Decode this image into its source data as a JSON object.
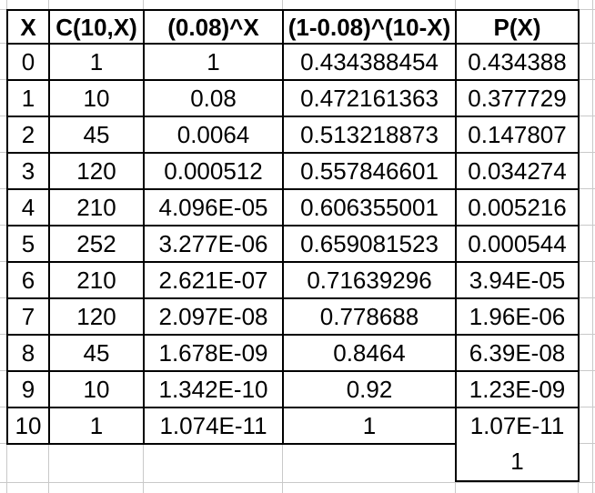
{
  "worksheet": {
    "table": {
      "columns": [
        "X",
        "C(10,X)",
        "(0.08)^X",
        "(1-0.08)^(10-X)",
        "P(X)"
      ],
      "rows": [
        [
          "0",
          "1",
          "1",
          "0.434388454",
          "0.434388"
        ],
        [
          "1",
          "10",
          "0.08",
          "0.472161363",
          "0.377729"
        ],
        [
          "2",
          "45",
          "0.0064",
          "0.513218873",
          "0.147807"
        ],
        [
          "3",
          "120",
          "0.000512",
          "0.557846601",
          "0.034274"
        ],
        [
          "4",
          "210",
          "4.096E-05",
          "0.606355001",
          "0.005216"
        ],
        [
          "5",
          "252",
          "3.277E-06",
          "0.659081523",
          "0.000544"
        ],
        [
          "6",
          "210",
          "2.621E-07",
          "0.71639296",
          "3.94E-05"
        ],
        [
          "7",
          "120",
          "2.097E-08",
          "0.778688",
          "1.96E-06"
        ],
        [
          "8",
          "45",
          "1.678E-09",
          "0.8464",
          "6.39E-08"
        ],
        [
          "9",
          "10",
          "1.342E-10",
          "0.92",
          "1.23E-09"
        ],
        [
          "10",
          "1",
          "1.074E-11",
          "1",
          "1.07E-11"
        ]
      ],
      "total": {
        "value": "1"
      }
    },
    "colors": {
      "cell_border": "#000000",
      "gridline": "#c9c9c9",
      "background": "#ffffff",
      "text": "#000000"
    }
  },
  "chart_data": {
    "type": "table",
    "columns": [
      "X",
      "C(10,X)",
      "(0.08)^X",
      "(1-0.08)^(10-X)",
      "P(X)"
    ],
    "rows": [
      [
        0,
        1,
        1,
        0.434388454,
        0.434388
      ],
      [
        1,
        10,
        0.08,
        0.472161363,
        0.377729
      ],
      [
        2,
        45,
        0.0064,
        0.513218873,
        0.147807
      ],
      [
        3,
        120,
        0.000512,
        0.557846601,
        0.034274
      ],
      [
        4,
        210,
        4.096e-05,
        0.606355001,
        0.005216
      ],
      [
        5,
        252,
        3.277e-06,
        0.659081523,
        0.000544
      ],
      [
        6,
        210,
        2.621e-07,
        0.71639296,
        3.94e-05
      ],
      [
        7,
        120,
        2.097e-08,
        0.778688,
        1.96e-06
      ],
      [
        8,
        45,
        1.678e-09,
        0.8464,
        6.39e-08
      ],
      [
        9,
        10,
        1.342e-10,
        0.92,
        1.23e-09
      ],
      [
        10,
        1,
        1.074e-11,
        1,
        1.07e-11
      ]
    ],
    "total_P": 1
  }
}
